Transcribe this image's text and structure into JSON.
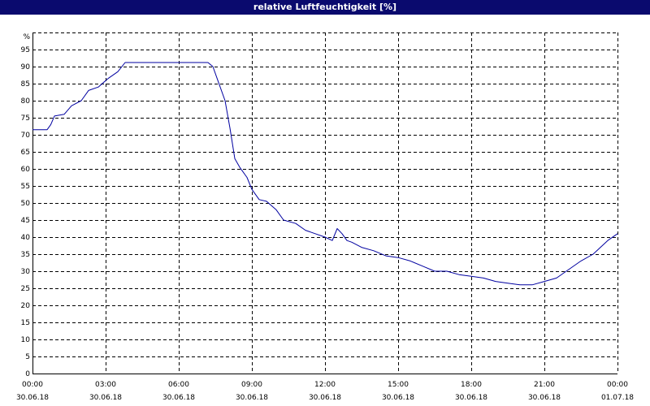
{
  "window": {
    "title": "relative Luftfeuchtigkeit [%]"
  },
  "colors": {
    "titlebar": "#0a0a6e",
    "line": "#0000a0",
    "grid": "#000000"
  },
  "chart_data": {
    "type": "line",
    "title": "relative Luftfeuchtigkeit [%]",
    "ylabel": "%",
    "xlabel": "",
    "ylim": [
      0,
      100
    ],
    "xlim": [
      0,
      24
    ],
    "grid": true,
    "y_ticks": [
      0,
      5,
      10,
      15,
      20,
      25,
      30,
      35,
      40,
      45,
      50,
      55,
      60,
      65,
      70,
      75,
      80,
      85,
      90,
      95
    ],
    "x_ticks": [
      {
        "x": 0,
        "time": "00:00",
        "date": "30.06.18"
      },
      {
        "x": 3,
        "time": "03:00",
        "date": "30.06.18"
      },
      {
        "x": 6,
        "time": "06:00",
        "date": "30.06.18"
      },
      {
        "x": 9,
        "time": "09:00",
        "date": "30.06.18"
      },
      {
        "x": 12,
        "time": "12:00",
        "date": "30.06.18"
      },
      {
        "x": 15,
        "time": "15:00",
        "date": "30.06.18"
      },
      {
        "x": 18,
        "time": "18:00",
        "date": "30.06.18"
      },
      {
        "x": 21,
        "time": "21:00",
        "date": "30.06.18"
      },
      {
        "x": 24,
        "time": "00:00",
        "date": "01.07.18"
      }
    ],
    "series": [
      {
        "x": [
          0,
          0.6,
          0.75,
          0.9,
          1.3,
          1.6,
          2.0,
          2.3,
          2.7,
          3.1,
          3.5,
          3.8,
          4.5,
          5.5,
          6.5,
          7.2,
          7.4,
          7.6,
          7.9,
          8.1,
          8.3,
          8.5,
          8.8,
          9.0,
          9.3,
          9.6,
          10.0,
          10.3,
          10.8,
          11.2,
          11.6,
          12.0,
          12.3,
          12.5,
          12.7,
          12.9,
          13.1,
          13.5,
          14.0,
          14.5,
          15.0,
          15.5,
          16.0,
          16.5,
          17.0,
          17.5,
          18.0,
          18.5,
          19.0,
          19.5,
          20.0,
          20.5,
          21.0,
          21.5,
          22.0,
          22.5,
          23.0,
          23.3,
          23.6,
          24.0
        ],
        "y": [
          71.5,
          71.5,
          73,
          75.5,
          76,
          78.5,
          80,
          83,
          84,
          86.5,
          88.5,
          91.2,
          91.2,
          91.2,
          91.2,
          91.2,
          90,
          86,
          80,
          72,
          63,
          60.5,
          57.5,
          54,
          51,
          50.5,
          48,
          45,
          44,
          42,
          41,
          40,
          39,
          42.5,
          41,
          39,
          38.5,
          37,
          36,
          34.5,
          34,
          33,
          31.5,
          30,
          30,
          29,
          28.5,
          28,
          27,
          26.5,
          26,
          26,
          27,
          28,
          30.5,
          33,
          35,
          37,
          39,
          41
        ]
      }
    ]
  }
}
